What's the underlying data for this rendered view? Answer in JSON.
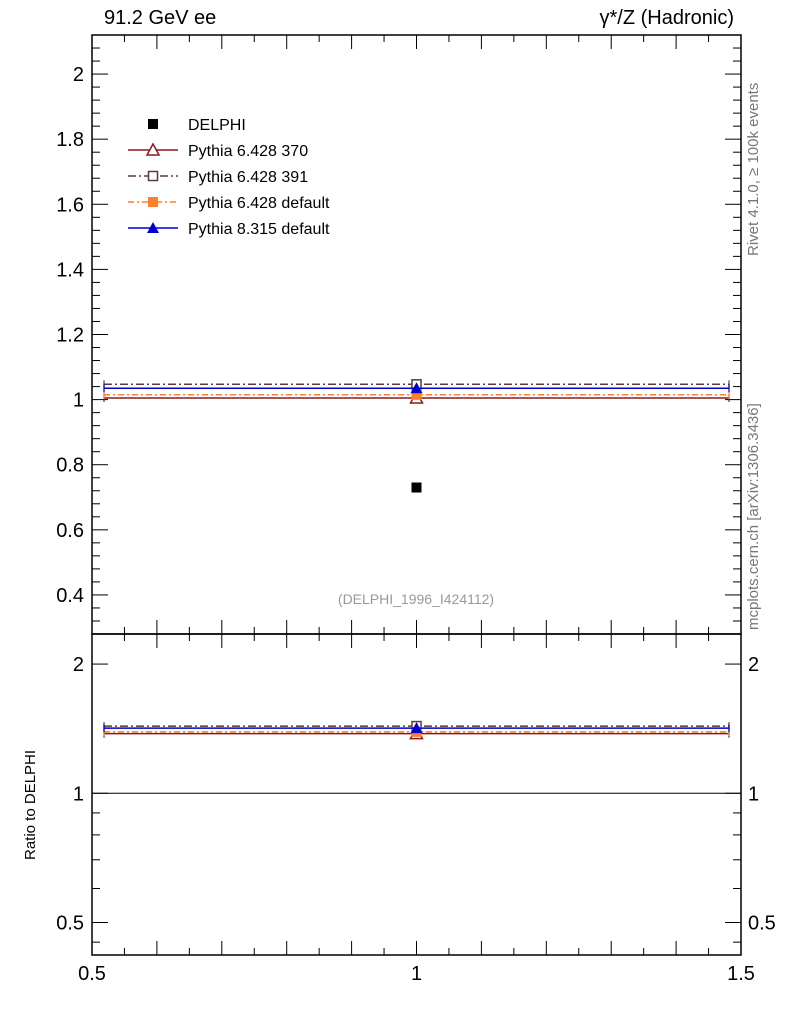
{
  "header": {
    "left": "91.2 GeV ee",
    "right": "γ*/Z (Hadronic)"
  },
  "side_notes": {
    "rivet": "Rivet 4.1.0, ≥ 100k events",
    "mcplots": "mcplots.cern.ch [arXiv:1306.3436]"
  },
  "chart_data": [
    {
      "panel": "main",
      "type": "scatter",
      "xlim": [
        0.5,
        1.5
      ],
      "ylim": [
        0.28,
        2.12
      ],
      "x_ticks": [
        {
          "v": 0.5,
          "label": "0.5"
        },
        {
          "v": 1,
          "label": "1"
        },
        {
          "v": 1.5,
          "label": "1.5"
        }
      ],
      "y_ticks": [
        {
          "v": 0.4,
          "label": "0.4"
        },
        {
          "v": 0.6,
          "label": "0.6"
        },
        {
          "v": 0.8,
          "label": "0.8"
        },
        {
          "v": 1.0,
          "label": "1"
        },
        {
          "v": 1.2,
          "label": "1.2"
        },
        {
          "v": 1.4,
          "label": "1.4"
        },
        {
          "v": 1.6,
          "label": "1.6"
        },
        {
          "v": 1.8,
          "label": "1.8"
        },
        {
          "v": 2.0,
          "label": "2"
        }
      ],
      "reference": "(DELPHI_1996_I424112)",
      "legend_position": "top-left",
      "series": [
        {
          "name": "DELPHI",
          "kind": "data",
          "x": [
            1.0
          ],
          "y": [
            0.73
          ],
          "color": "#000000",
          "marker": "square-filled"
        },
        {
          "name": "Pythia 6.428 370",
          "kind": "mc",
          "xrange": [
            0.5,
            1.5
          ],
          "y": [
            1.005
          ],
          "color": "#8b1a1a",
          "dash": "",
          "marker": "triangle-open"
        },
        {
          "name": "Pythia 6.428 391",
          "kind": "mc",
          "xrange": [
            0.5,
            1.5
          ],
          "y": [
            1.047
          ],
          "color": "#5a3a3a",
          "dash": "8,3,2,3",
          "marker": "square-open"
        },
        {
          "name": "Pythia 6.428 default",
          "kind": "mc",
          "xrange": [
            0.5,
            1.5
          ],
          "y": [
            1.015
          ],
          "color": "#ff7f2a",
          "dash": "6,3,2,3",
          "marker": "square-filled"
        },
        {
          "name": "Pythia 8.315 default",
          "kind": "mc",
          "xrange": [
            0.5,
            1.5
          ],
          "y": [
            1.035
          ],
          "color": "#0000cc",
          "dash": "",
          "marker": "triangle-filled"
        }
      ]
    },
    {
      "panel": "ratio",
      "type": "line",
      "ylabel": "Ratio to DELPHI",
      "xlim": [
        0.5,
        1.5
      ],
      "ylim": [
        0.42,
        2.35
      ],
      "log_y": true,
      "x_ticks": [
        {
          "v": 0.5,
          "label": "0.5"
        },
        {
          "v": 1,
          "label": "1"
        },
        {
          "v": 1.5,
          "label": "1.5"
        }
      ],
      "y_ticks": [
        {
          "v": 0.5,
          "label": "0.5"
        },
        {
          "v": 1,
          "label": "1"
        },
        {
          "v": 2,
          "label": "2"
        }
      ],
      "series": [
        {
          "name": "Pythia 6.428 370",
          "xrange": [
            0.5,
            1.5
          ],
          "y": [
            1.377
          ],
          "color": "#8b1a1a",
          "dash": "",
          "marker": "triangle-open"
        },
        {
          "name": "Pythia 6.428 391",
          "xrange": [
            0.5,
            1.5
          ],
          "y": [
            1.434
          ],
          "color": "#5a3a3a",
          "dash": "8,3,2,3",
          "marker": "square-open"
        },
        {
          "name": "Pythia 6.428 default",
          "xrange": [
            0.5,
            1.5
          ],
          "y": [
            1.39
          ],
          "color": "#ff7f2a",
          "dash": "6,3,2,3",
          "marker": "square-filled"
        },
        {
          "name": "Pythia 8.315 default",
          "xrange": [
            0.5,
            1.5
          ],
          "y": [
            1.418
          ],
          "color": "#0000cc",
          "dash": "",
          "marker": "triangle-filled"
        }
      ]
    }
  ]
}
